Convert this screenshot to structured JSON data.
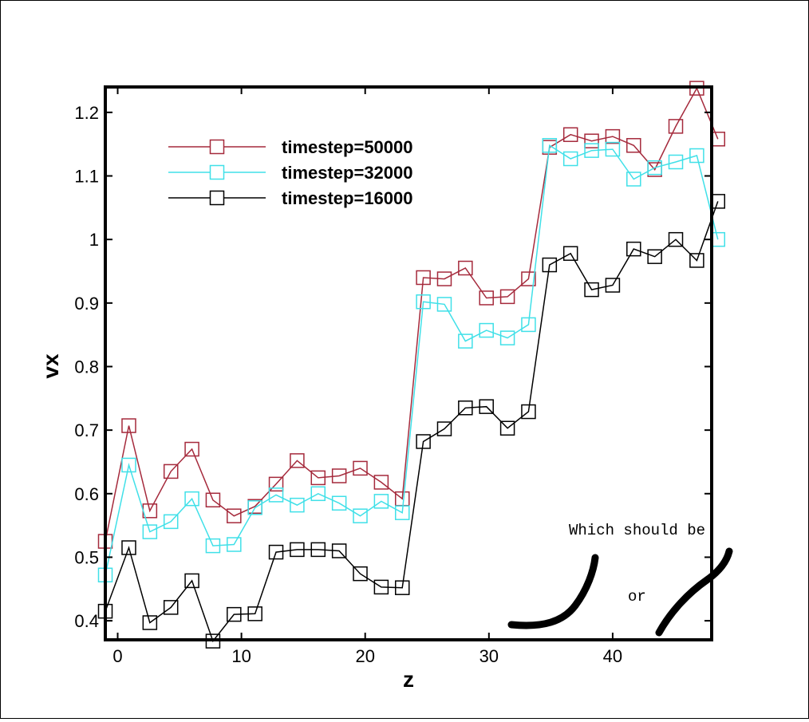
{
  "chart_data": {
    "type": "line",
    "xlabel": "z",
    "ylabel": "vx",
    "xlim": [
      -1,
      48
    ],
    "ylim": [
      0.37,
      1.24
    ],
    "x_ticks": [
      0,
      10,
      20,
      30,
      40
    ],
    "y_ticks": [
      0.4,
      0.5,
      0.6,
      0.7,
      0.8,
      0.9,
      1,
      1.1,
      1.2
    ],
    "y_tick_labels": [
      "0.4",
      "0.5",
      "0.6",
      "0.7",
      "0.8",
      "0.9",
      "1",
      "1.1",
      "1.2"
    ],
    "x_tick_labels": [
      "0",
      "10",
      "20",
      "30",
      "40"
    ],
    "grid": false,
    "legend_position": "top-left",
    "marker": "square",
    "x": [
      -1.0,
      0.9,
      2.6,
      4.3,
      6.0,
      7.7,
      9.4,
      11.1,
      12.8,
      14.5,
      16.2,
      17.9,
      19.6,
      21.3,
      23.0,
      24.7,
      26.4,
      28.1,
      29.8,
      31.5,
      33.2,
      34.9,
      36.6,
      38.3,
      40.0,
      41.7,
      43.4,
      45.1,
      46.8,
      48.5
    ],
    "series": [
      {
        "name": "timestep=50000",
        "color": "#a52a3c",
        "values": [
          0.525,
          0.707,
          0.573,
          0.635,
          0.67,
          0.59,
          0.565,
          0.58,
          0.615,
          0.652,
          0.625,
          0.628,
          0.64,
          0.618,
          0.592,
          0.94,
          0.938,
          0.955,
          0.908,
          0.91,
          0.938,
          1.145,
          1.165,
          1.155,
          1.162,
          1.148,
          1.11,
          1.178,
          1.238,
          1.158
        ]
      },
      {
        "name": "timestep=32000",
        "color": "#40e0e8",
        "values": [
          0.472,
          0.645,
          0.54,
          0.556,
          0.592,
          0.518,
          0.52,
          0.578,
          0.598,
          0.582,
          0.6,
          0.585,
          0.565,
          0.588,
          0.57,
          0.902,
          0.898,
          0.84,
          0.857,
          0.845,
          0.866,
          1.148,
          1.127,
          1.14,
          1.142,
          1.095,
          1.113,
          1.122,
          1.132,
          1.0
        ]
      },
      {
        "name": "timestep=16000",
        "color": "#000000",
        "values": [
          0.415,
          0.515,
          0.397,
          0.421,
          0.463,
          0.368,
          0.41,
          0.411,
          0.508,
          0.512,
          0.512,
          0.51,
          0.474,
          0.453,
          0.452,
          0.682,
          0.702,
          0.735,
          0.737,
          0.703,
          0.729,
          0.96,
          0.978,
          0.921,
          0.928,
          0.985,
          0.973,
          1.0,
          0.967,
          1.06
        ]
      }
    ],
    "annotations": {
      "which_should_be": "Which should be",
      "or": "or"
    }
  }
}
